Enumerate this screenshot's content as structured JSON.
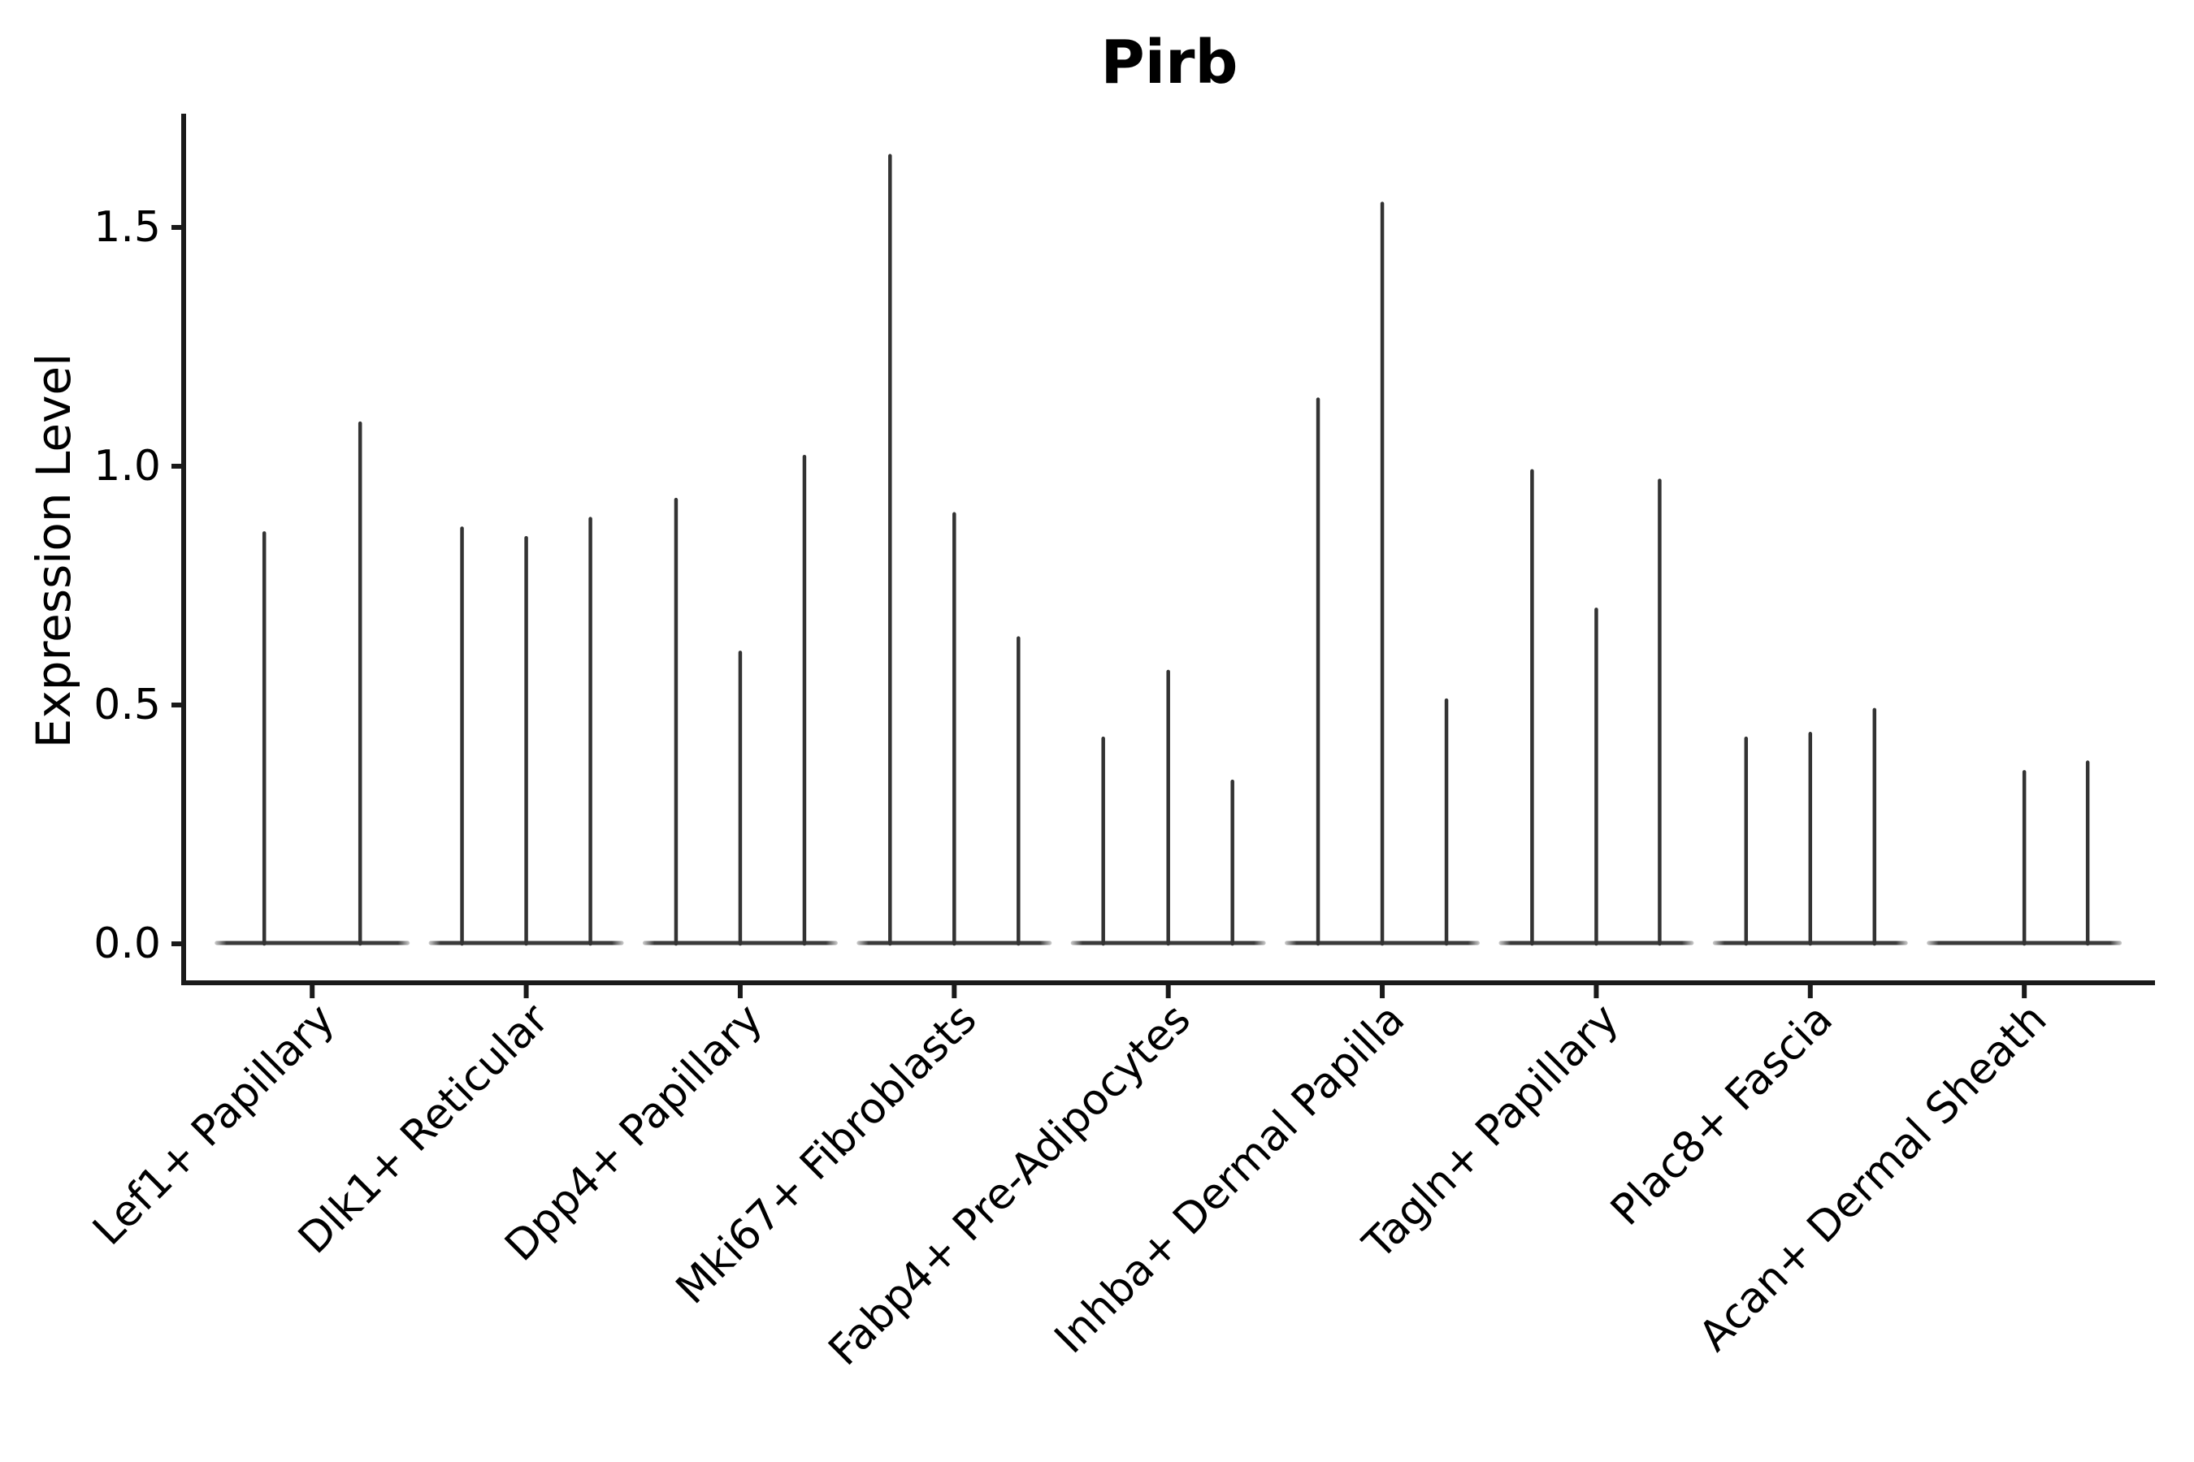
{
  "figure": {
    "title": "Pirb",
    "y_axis": {
      "label": "Expression Level",
      "tick_labels": [
        "0.0",
        "0.5",
        "1.0",
        "1.5"
      ]
    }
  },
  "chart_data": {
    "type": "violin",
    "title": "Pirb",
    "xlabel": "",
    "ylabel": "Expression Level",
    "ylim": [
      0,
      1.74
    ],
    "yticks": [
      0,
      0.5,
      1.0,
      1.5
    ],
    "grid": false,
    "legend": null,
    "description": "Violin plot of Pirb expression; each cell-type category contains 2-3 very thin violins (sub-samples) flattened at 0 with narrow spikes reaching the max expression value.",
    "categories": [
      "Lef1+ Papillary",
      "Dlk1+ Reticular",
      "Dpp4+ Papillary",
      "Mki67+ Fibroblasts",
      "Fabp4+ Pre-Adipocytes",
      "Inhba+ Dermal Papilla",
      "Tagln+ Papillary",
      "Plac8+ Fascia",
      "Acan+ Dermal Sheath"
    ],
    "series": [
      {
        "category": "Lef1+ Papillary",
        "violins": [
          {
            "offset": -59,
            "max": 0.86
          },
          {
            "offset": 59,
            "max": 1.09
          }
        ]
      },
      {
        "category": "Dlk1+ Reticular",
        "violins": [
          {
            "offset": -79,
            "max": 0.87
          },
          {
            "offset": 0,
            "max": 0.85
          },
          {
            "offset": 79,
            "max": 0.89
          }
        ]
      },
      {
        "category": "Dpp4+ Papillary",
        "violins": [
          {
            "offset": -79,
            "max": 0.93
          },
          {
            "offset": 0,
            "max": 0.61
          },
          {
            "offset": 79,
            "max": 1.02
          }
        ]
      },
      {
        "category": "Mki67+ Fibroblasts",
        "violins": [
          {
            "offset": -79,
            "max": 1.65
          },
          {
            "offset": 0,
            "max": 0.9
          },
          {
            "offset": 79,
            "max": 0.64
          }
        ]
      },
      {
        "category": "Fabp4+ Pre-Adipocytes",
        "violins": [
          {
            "offset": -80,
            "max": 0.43
          },
          {
            "offset": 0,
            "max": 0.57
          },
          {
            "offset": 79,
            "max": 0.34
          }
        ]
      },
      {
        "category": "Inhba+ Dermal Papilla",
        "violins": [
          {
            "offset": -79,
            "max": 1.14
          },
          {
            "offset": 0,
            "max": 1.55
          },
          {
            "offset": 79,
            "max": 0.51
          }
        ]
      },
      {
        "category": "Tagln+ Papillary",
        "violins": [
          {
            "offset": -79,
            "max": 0.99
          },
          {
            "offset": 0,
            "max": 0.7
          },
          {
            "offset": 78,
            "max": 0.97
          }
        ]
      },
      {
        "category": "Plac8+ Fascia",
        "violins": [
          {
            "offset": -79,
            "max": 0.43
          },
          {
            "offset": 0,
            "max": 0.44
          },
          {
            "offset": 79,
            "max": 0.49
          }
        ]
      },
      {
        "category": "Acan+ Dermal Sheath",
        "violins": [
          {
            "offset": 0,
            "max": 0.36
          },
          {
            "offset": 78,
            "max": 0.38
          }
        ]
      }
    ],
    "style": {
      "violin_color": "#333333",
      "baseline_color": "#3a3a3a",
      "axis_color": "#1a1a1a",
      "background": "#ffffff"
    }
  }
}
